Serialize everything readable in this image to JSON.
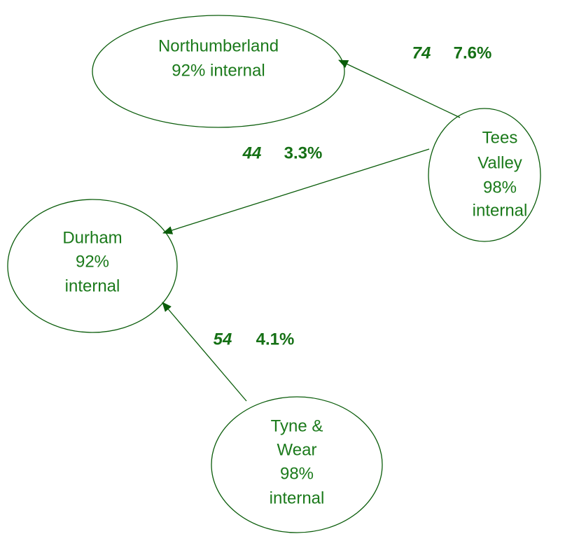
{
  "nodes": [
    {
      "lines": [
        "Northumberland",
        "92% internal"
      ]
    },
    {
      "lines": [
        "Tees",
        "Valley",
        "98%",
        "internal"
      ]
    },
    {
      "lines": [
        "Durham",
        "92%",
        "internal"
      ]
    },
    {
      "lines": [
        "Tyne &",
        "Wear",
        "98%",
        "internal"
      ]
    }
  ],
  "edges": [
    {
      "count": "74",
      "share": "7.6%"
    },
    {
      "count": "44",
      "share": "3.3%"
    },
    {
      "count": "54",
      "share": "4.1%"
    }
  ]
}
